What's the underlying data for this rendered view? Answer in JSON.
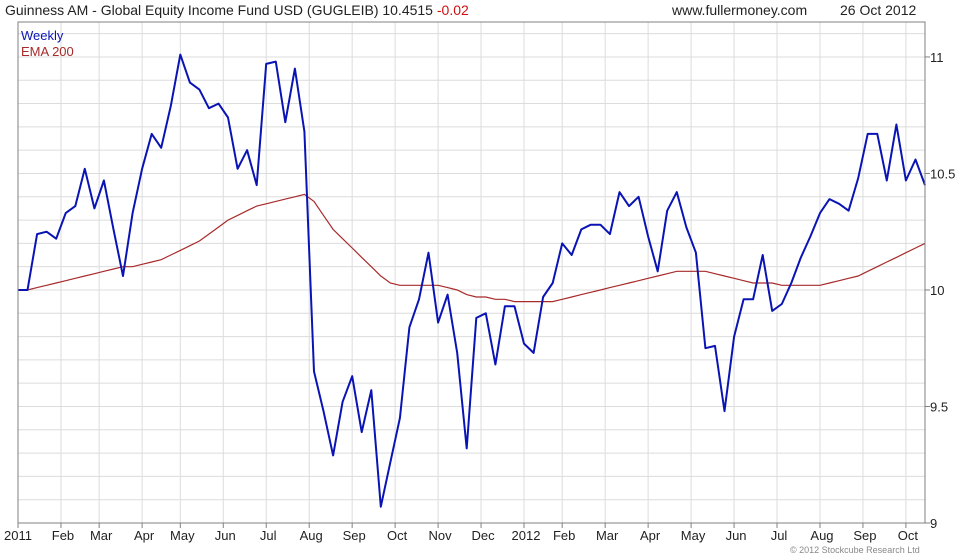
{
  "header": {
    "title": "Guinness AM - Global Equity Income Fund USD (GUGLEIB) 10.4515",
    "change": "-0.02",
    "site": "www.fullermoney.com",
    "date": "26 Oct 2012"
  },
  "copyright": "© 2012 Stockcube Research Ltd",
  "colors": {
    "weekly": "#0a14b4",
    "ema": "#a82a2a",
    "grid": "#dcdcdc",
    "axis": "#808080"
  },
  "chart_data": {
    "type": "line",
    "grid": true,
    "legend_position": "top-left",
    "ylim": [
      9,
      11.15
    ],
    "y_ticks": [
      9,
      9.5,
      10,
      10.5,
      11
    ],
    "y_tick_labels": [
      "9",
      "9.5",
      "10",
      "10.5",
      "11"
    ],
    "x_range": [
      0,
      95
    ],
    "x_ticks": [
      0,
      4.5,
      8.5,
      13,
      17,
      21.5,
      26,
      30.5,
      35,
      39.5,
      44,
      48.5,
      53,
      57,
      61.5,
      66,
      70.5,
      75,
      79.5,
      84,
      88.5,
      93
    ],
    "x_tick_labels": [
      "2011",
      "Feb",
      "Mar",
      "Apr",
      "May",
      "Jun",
      "Jul",
      "Aug",
      "Sep",
      "Oct",
      "Nov",
      "Dec",
      "2012",
      "Feb",
      "Mar",
      "Apr",
      "May",
      "Jun",
      "Jul",
      "Aug",
      "Sep",
      "Oct"
    ],
    "series": [
      {
        "name": "Weekly",
        "values": [
          10.0,
          10.0,
          10.24,
          10.25,
          10.22,
          10.33,
          10.36,
          10.52,
          10.35,
          10.47,
          10.26,
          10.06,
          10.33,
          10.52,
          10.67,
          10.61,
          10.79,
          11.01,
          10.89,
          10.86,
          10.78,
          10.8,
          10.74,
          10.52,
          10.6,
          10.45,
          10.97,
          10.98,
          10.72,
          10.95,
          10.68,
          9.65,
          9.48,
          9.29,
          9.52,
          9.63,
          9.39,
          9.57,
          9.07,
          9.26,
          9.45,
          9.84,
          9.96,
          10.16,
          9.86,
          9.98,
          9.73,
          9.32,
          9.88,
          9.9,
          9.68,
          9.93,
          9.93,
          9.77,
          9.73,
          9.97,
          10.03,
          10.2,
          10.15,
          10.26,
          10.28,
          10.28,
          10.24,
          10.42,
          10.36,
          10.4,
          10.23,
          10.08,
          10.34,
          10.42,
          10.27,
          10.16,
          9.75,
          9.76,
          9.48,
          9.8,
          9.96,
          9.96,
          10.15,
          9.91,
          9.94,
          10.03,
          10.14,
          10.23,
          10.33,
          10.39,
          10.37,
          10.34,
          10.48,
          10.67,
          10.67,
          10.47,
          10.71,
          10.47,
          10.56,
          10.45
        ]
      },
      {
        "name": "EMA 200",
        "values": [
          10.0,
          10.0,
          10.01,
          10.02,
          10.03,
          10.04,
          10.05,
          10.06,
          10.07,
          10.08,
          10.09,
          10.1,
          10.1,
          10.11,
          10.12,
          10.13,
          10.15,
          10.17,
          10.19,
          10.21,
          10.24,
          10.27,
          10.3,
          10.32,
          10.34,
          10.36,
          10.37,
          10.38,
          10.39,
          10.4,
          10.41,
          10.38,
          10.32,
          10.26,
          10.22,
          10.18,
          10.14,
          10.1,
          10.06,
          10.03,
          10.02,
          10.02,
          10.02,
          10.02,
          10.02,
          10.01,
          10.0,
          9.98,
          9.97,
          9.97,
          9.96,
          9.96,
          9.95,
          9.95,
          9.95,
          9.95,
          9.95,
          9.96,
          9.97,
          9.98,
          9.99,
          10.0,
          10.01,
          10.02,
          10.03,
          10.04,
          10.05,
          10.06,
          10.07,
          10.08,
          10.08,
          10.08,
          10.08,
          10.07,
          10.06,
          10.05,
          10.04,
          10.03,
          10.03,
          10.03,
          10.02,
          10.02,
          10.02,
          10.02,
          10.02,
          10.03,
          10.04,
          10.05,
          10.06,
          10.08,
          10.1,
          10.12,
          10.14,
          10.16,
          10.18,
          10.2
        ]
      }
    ]
  }
}
